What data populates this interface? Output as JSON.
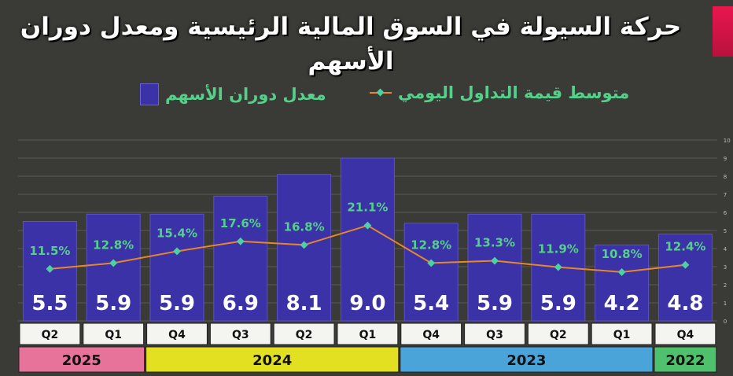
{
  "title": "حركة السيولة في السوق المالية الرئيسية ومعدل دوران الأسهم",
  "legend": {
    "bar_label": "معدل دوران الأسهم",
    "line_label": "متوسط قيمة التداول اليومي"
  },
  "colors": {
    "bar": "#3b32a8",
    "line": "#e8862a",
    "marker": "#4fd0a0",
    "pct_text": "#55d08a",
    "year_2025": "#e8739a",
    "year_2024": "#e2e021",
    "year_2023": "#4aa3d9",
    "year_2022": "#4fc06c"
  },
  "chart_data": {
    "type": "bar",
    "categories": [
      "Q2 2025",
      "Q1 2025",
      "Q4 2024",
      "Q3 2024",
      "Q2 2024",
      "Q1 2024",
      "Q4 2023",
      "Q3 2023",
      "Q2 2023",
      "Q1 2023",
      "Q4 2022"
    ],
    "quarter_labels": [
      "Q2",
      "Q1",
      "Q4",
      "Q3",
      "Q2",
      "Q1",
      "Q4",
      "Q3",
      "Q2",
      "Q1",
      "Q4"
    ],
    "years": [
      {
        "label": "2025",
        "count": 2,
        "color": "#e8739a"
      },
      {
        "label": "2024",
        "count": 4,
        "color": "#e2e021"
      },
      {
        "label": "2023",
        "count": 4,
        "color": "#4aa3d9"
      },
      {
        "label": "2022",
        "count": 1,
        "color": "#4fc06c"
      }
    ],
    "series": [
      {
        "name": "معدل دوران الأسهم",
        "type": "bar",
        "values": [
          5.5,
          5.9,
          5.9,
          6.9,
          8.1,
          9.0,
          5.4,
          5.9,
          5.9,
          4.2,
          4.8
        ],
        "labels": [
          "5.5",
          "5.9",
          "5.9",
          "6.9",
          "8.1",
          "9.0",
          "5.4",
          "5.9",
          "5.9",
          "4.2",
          "4.8"
        ]
      },
      {
        "name": "متوسط قيمة التداول اليومي",
        "type": "line",
        "values": [
          11.5,
          12.8,
          15.4,
          17.6,
          16.8,
          21.1,
          12.8,
          13.3,
          11.9,
          10.8,
          12.4
        ],
        "labels": [
          "11.5%",
          "12.8%",
          "15.4%",
          "17.6%",
          "16.8%",
          "21.1%",
          "12.8%",
          "13.3%",
          "11.9%",
          "10.8%",
          "12.4%"
        ]
      }
    ],
    "y_axis": {
      "ticks": [
        "0",
        "1",
        "2",
        "3",
        "4",
        "5",
        "6",
        "7",
        "8",
        "9",
        "10"
      ],
      "ylim": [
        0,
        10
      ],
      "position": "right"
    },
    "line_range": [
      0,
      40
    ],
    "grid": true,
    "legend_position": "top"
  }
}
